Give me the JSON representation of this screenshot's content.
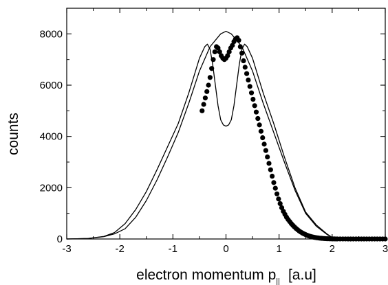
{
  "chart_data": {
    "type": "line",
    "xlabel": "electron momentum p",
    "xlabel_subscript": "||",
    "xlabel_unit": "[a.u]",
    "ylabel": "counts",
    "xlim": [
      -3,
      3
    ],
    "ylim": [
      0,
      9000
    ],
    "xticks": [
      -3,
      -2,
      -1,
      0,
      1,
      2,
      3
    ],
    "xtick_labels": [
      "-3",
      "-2",
      "-1",
      "0",
      "1",
      "2",
      "3"
    ],
    "yticks": [
      0,
      2000,
      4000,
      6000,
      8000
    ],
    "ytick_labels": [
      "0",
      "2000",
      "4000",
      "6000",
      "8000"
    ],
    "grid": false,
    "legend": "none",
    "series": [
      {
        "style": "line",
        "x": [
          -3,
          -2.6,
          -2.3,
          -2.1,
          -1.9,
          -1.7,
          -1.5,
          -1.3,
          -1.1,
          -0.9,
          -0.7,
          -0.5,
          -0.4,
          -0.35,
          -0.3,
          -0.25,
          -0.2,
          -0.15,
          -0.1,
          -0.05,
          0,
          0.05,
          0.1,
          0.15,
          0.2,
          0.25,
          0.3,
          0.35,
          0.4,
          0.5,
          0.7,
          0.9,
          1.1,
          1.3,
          1.5,
          1.7,
          1.9,
          2.0,
          2.1,
          2.3,
          2.6,
          3
        ],
        "y": [
          0,
          20,
          100,
          250,
          600,
          1150,
          1850,
          2700,
          3600,
          4500,
          5700,
          7050,
          7500,
          7600,
          7400,
          6800,
          6000,
          5200,
          4650,
          4450,
          4400,
          4450,
          4650,
          5200,
          6000,
          6800,
          7400,
          7600,
          7500,
          7050,
          5700,
          4500,
          3200,
          2000,
          1050,
          550,
          200,
          60,
          20,
          5,
          0,
          0
        ]
      },
      {
        "style": "line",
        "x": [
          -3,
          -2.6,
          -2.3,
          -2.1,
          -1.9,
          -1.7,
          -1.5,
          -1.3,
          -1.1,
          -0.9,
          -0.7,
          -0.5,
          -0.3,
          -0.1,
          0,
          0.1,
          0.3,
          0.5,
          0.7,
          0.9,
          1.1,
          1.3,
          1.5,
          1.7,
          1.9,
          2.0,
          2.1,
          2.3,
          2.6,
          3
        ],
        "y": [
          0,
          20,
          90,
          200,
          400,
          850,
          1500,
          2300,
          3200,
          4150,
          5300,
          6550,
          7500,
          8000,
          8100,
          8000,
          7500,
          6550,
          5300,
          4150,
          3000,
          1900,
          1000,
          500,
          180,
          50,
          15,
          5,
          0,
          0
        ]
      },
      {
        "style": "markers",
        "x": [
          -0.45,
          -0.42,
          -0.39,
          -0.36,
          -0.33,
          -0.3,
          -0.27,
          -0.24,
          -0.21,
          -0.18,
          -0.15,
          -0.12,
          -0.09,
          -0.06,
          -0.03,
          0,
          0.03,
          0.06,
          0.09,
          0.12,
          0.15,
          0.18,
          0.21,
          0.24,
          0.27,
          0.3,
          0.33,
          0.36,
          0.39,
          0.42,
          0.45,
          0.48,
          0.51,
          0.54,
          0.57,
          0.6,
          0.63,
          0.66,
          0.69,
          0.72,
          0.75,
          0.78,
          0.81,
          0.84,
          0.87,
          0.9,
          0.93,
          0.96,
          0.99,
          1.02,
          1.05,
          1.08,
          1.11,
          1.14,
          1.17,
          1.2,
          1.23,
          1.26,
          1.29,
          1.32,
          1.35,
          1.38,
          1.41,
          1.44,
          1.47,
          1.5,
          1.53,
          1.56,
          1.59,
          1.62,
          1.65,
          1.68,
          1.71,
          1.74,
          1.77,
          1.8,
          1.83,
          1.86,
          1.89,
          1.92,
          1.95,
          1.98,
          2.01,
          2.04,
          2.07,
          2.1,
          2.15,
          2.2,
          2.25,
          2.3,
          2.35,
          2.4,
          2.45,
          2.5,
          2.55,
          2.6,
          2.65,
          2.7,
          2.75,
          2.8,
          2.85,
          2.9,
          2.95,
          3.0
        ],
        "y": [
          5000,
          5250,
          5500,
          5750,
          6000,
          6300,
          6650,
          7000,
          7300,
          7500,
          7450,
          7300,
          7150,
          7050,
          7000,
          7050,
          7150,
          7300,
          7450,
          7550,
          7700,
          7800,
          7850,
          7750,
          7500,
          7250,
          6950,
          6700,
          6450,
          6200,
          5950,
          5700,
          5450,
          5200,
          4950,
          4700,
          4450,
          4200,
          3950,
          3700,
          3450,
          3200,
          2950,
          2700,
          2450,
          2200,
          1980,
          1760,
          1560,
          1380,
          1220,
          1080,
          960,
          850,
          760,
          680,
          600,
          530,
          470,
          410,
          360,
          310,
          270,
          230,
          200,
          170,
          145,
          120,
          100,
          85,
          70,
          58,
          48,
          40,
          32,
          26,
          20,
          16,
          12,
          9,
          7,
          5,
          4,
          3,
          2,
          2,
          1,
          1,
          1,
          0,
          0,
          0,
          0,
          0,
          0,
          0,
          0,
          0,
          0,
          0,
          0,
          0,
          0,
          0
        ]
      }
    ]
  }
}
